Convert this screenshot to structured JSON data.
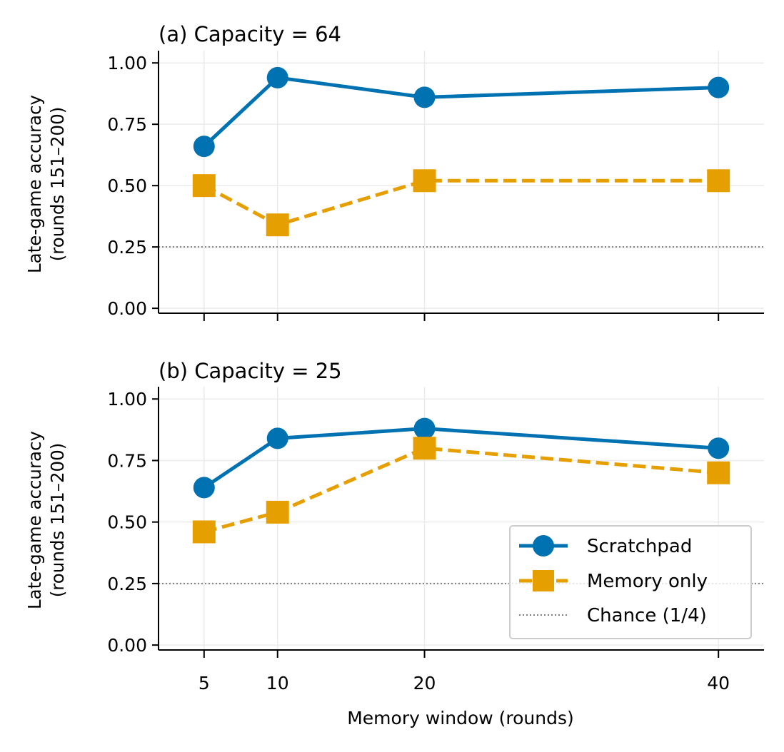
{
  "chart_data": [
    {
      "type": "line",
      "title": "(a) Capacity = 64",
      "ylabel_line1": "Late-game accuracy",
      "ylabel_line2": "(rounds 151–200)",
      "xlabel": "",
      "x": [
        5,
        10,
        20,
        40
      ],
      "xlim": [
        1.9,
        43.1
      ],
      "ylim": [
        -0.02,
        1.05
      ],
      "yticks": [
        "0.00",
        "0.25",
        "0.50",
        "0.75",
        "1.00"
      ],
      "xticks_labeled": false,
      "grid": true,
      "chance": 0.25,
      "series": [
        {
          "name": "Scratchpad",
          "values": [
            0.66,
            0.94,
            0.86,
            0.9
          ],
          "color": "#0072B2",
          "marker": "circle",
          "dash": "solid"
        },
        {
          "name": "Memory only",
          "values": [
            0.5,
            0.34,
            0.52,
            0.52
          ],
          "color": "#E69F00",
          "marker": "square",
          "dash": "dashed"
        }
      ]
    },
    {
      "type": "line",
      "title": "(b) Capacity = 25",
      "ylabel_line1": "Late-game accuracy",
      "ylabel_line2": "(rounds 151–200)",
      "xlabel": "Memory window (rounds)",
      "x": [
        5,
        10,
        20,
        40
      ],
      "xlim": [
        1.9,
        43.1
      ],
      "ylim": [
        -0.02,
        1.05
      ],
      "yticks": [
        "0.00",
        "0.25",
        "0.50",
        "0.75",
        "1.00"
      ],
      "xticks": [
        "5",
        "10",
        "20",
        "40"
      ],
      "xticks_labeled": true,
      "grid": true,
      "chance": 0.25,
      "series": [
        {
          "name": "Scratchpad",
          "values": [
            0.64,
            0.84,
            0.88,
            0.8
          ],
          "color": "#0072B2",
          "marker": "circle",
          "dash": "solid"
        },
        {
          "name": "Memory only",
          "values": [
            0.46,
            0.54,
            0.8,
            0.7
          ],
          "color": "#E69F00",
          "marker": "square",
          "dash": "dashed"
        }
      ]
    }
  ],
  "legend": {
    "placement": "lower-right",
    "entries": [
      "Scratchpad",
      "Memory only",
      "Chance (1/4)"
    ]
  },
  "colors": {
    "scratchpad": "#0072B2",
    "memory_only": "#E69F00",
    "chance": "#808080",
    "grid": "#ebebeb"
  }
}
